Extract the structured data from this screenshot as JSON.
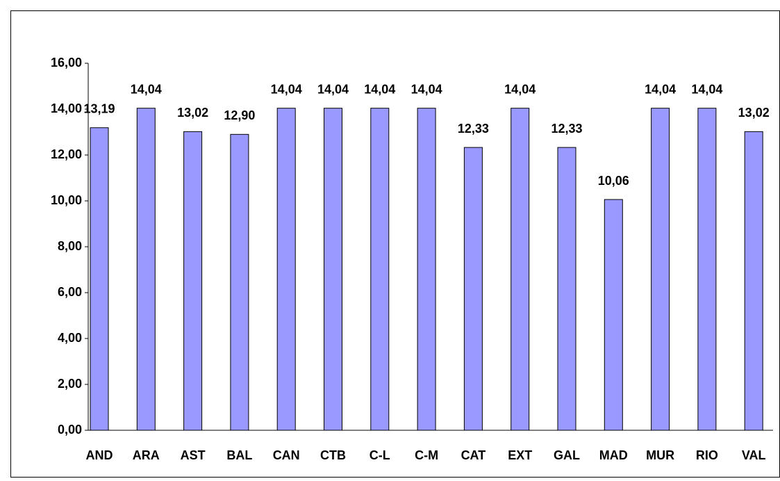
{
  "chart_data": {
    "type": "bar",
    "categories": [
      "AND",
      "ARA",
      "AST",
      "BAL",
      "CAN",
      "CTB",
      "C-L",
      "C-M",
      "CAT",
      "EXT",
      "GAL",
      "MAD",
      "MUR",
      "RIO",
      "VAL"
    ],
    "values": [
      13.19,
      14.04,
      13.02,
      12.9,
      14.04,
      14.04,
      14.04,
      14.04,
      12.33,
      14.04,
      12.33,
      10.06,
      14.04,
      14.04,
      13.02
    ],
    "value_labels": [
      "13,19",
      "14,04",
      "13,02",
      "12,90",
      "14,04",
      "14,04",
      "14,04",
      "14,04",
      "12,33",
      "14,04",
      "12,33",
      "10,06",
      "14,04",
      "14,04",
      "13,02"
    ],
    "color": "#9999ff",
    "ylim": [
      0,
      16
    ],
    "yticks": [
      {
        "value": 0,
        "label": "0,00"
      },
      {
        "value": 2,
        "label": "2,00"
      },
      {
        "value": 4,
        "label": "4,00"
      },
      {
        "value": 6,
        "label": "6,00"
      },
      {
        "value": 8,
        "label": "8,00"
      },
      {
        "value": 10,
        "label": "10,00"
      },
      {
        "value": 12,
        "label": "12,00"
      },
      {
        "value": 14,
        "label": "14,00"
      },
      {
        "value": 16,
        "label": "16,00"
      }
    ],
    "grid": false
  }
}
